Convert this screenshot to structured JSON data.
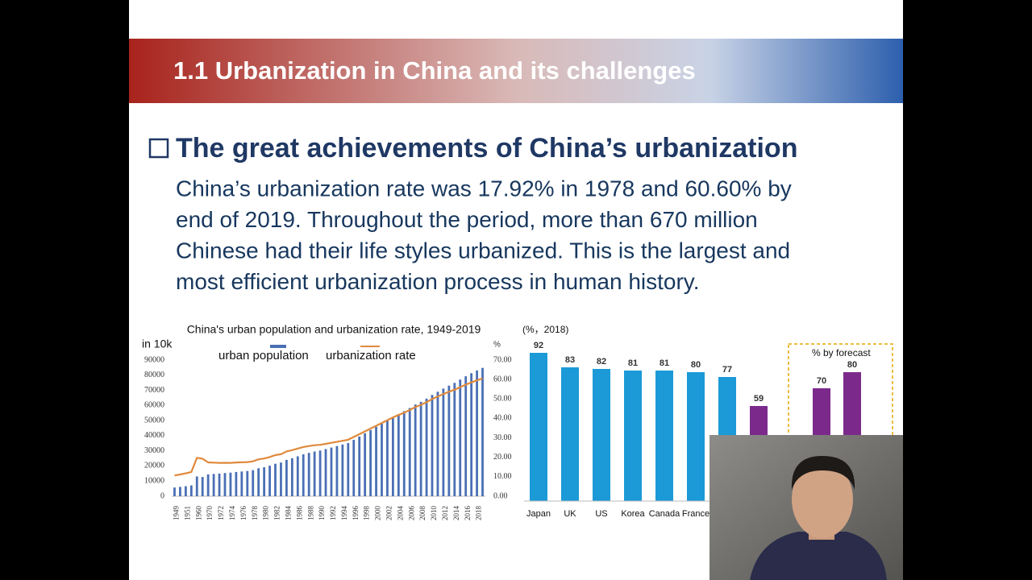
{
  "slide": {
    "title": "1.1  Urbanization in China and its challenges",
    "heading": "The great achievements of China’s urbanization",
    "body": [
      "China’s urbanization rate was 17.92% in 1978 and 60.60% by",
      "end of 2019. Throughout the period, more than 670 million",
      "Chinese had their life styles urbanized. This is the largest and",
      "most efficient urbanization process in human history."
    ]
  },
  "chart_data": [
    {
      "type": "bar-line",
      "title": "China's urban population and urbanization rate, 1949-2019",
      "y_label": "in 10k",
      "y2_label": "%",
      "categories": [
        "1949",
        null,
        "1951",
        null,
        "1960",
        null,
        "1970",
        null,
        "1972",
        null,
        "1974",
        null,
        "1976",
        null,
        "1978",
        null,
        "1980",
        null,
        "1982",
        null,
        "1984",
        null,
        "1986",
        null,
        "1988",
        null,
        "1990",
        null,
        "1992",
        null,
        "1994",
        null,
        "1996",
        null,
        "1998",
        null,
        "2000",
        null,
        "2002",
        null,
        "2004",
        null,
        "2006",
        null,
        "2008",
        null,
        "2010",
        null,
        "2012",
        null,
        "2014",
        null,
        "2016",
        null,
        "2018",
        null
      ],
      "series": [
        {
          "name": "urban population",
          "color": "#4a6fb5",
          "values": [
            5765,
            6169,
            6632,
            7163,
            13073,
            12707,
            14424,
            14711,
            14935,
            15345,
            15595,
            16030,
            16341,
            16669,
            17245,
            18495,
            19140,
            20171,
            21480,
            22274,
            24017,
            25094,
            26366,
            27674,
            28661,
            29540,
            30195,
            31203,
            32175,
            33173,
            34169,
            35174,
            37304,
            39449,
            41608,
            43748,
            45906,
            48064,
            50212,
            52376,
            54283,
            56212,
            58288,
            60633,
            62403,
            64512,
            66978,
            69079,
            71182,
            73111,
            74916,
            77116,
            79298,
            81347,
            83137,
            84843
          ]
        },
        {
          "name": "urbanization rate",
          "color": "#e08a3c",
          "axis": "y2",
          "values": [
            10.64,
            11.18,
            11.78,
            12.46,
            19.75,
            19.29,
            17.38,
            17.26,
            17.13,
            17.2,
            17.16,
            17.34,
            17.44,
            17.55,
            17.92,
            18.96,
            19.39,
            20.16,
            21.13,
            21.62,
            23.01,
            23.71,
            24.52,
            25.32,
            25.81,
            26.21,
            26.41,
            26.94,
            27.46,
            27.99,
            28.51,
            29.04,
            30.48,
            31.91,
            33.35,
            34.78,
            36.22,
            37.66,
            39.09,
            40.53,
            41.76,
            42.99,
            44.34,
            45.89,
            46.99,
            48.34,
            49.95,
            51.27,
            52.57,
            53.73,
            54.77,
            56.1,
            57.35,
            58.52,
            59.58,
            60.6
          ]
        }
      ],
      "ylim": [
        0,
        90000
      ],
      "yticks": [
        0,
        10000,
        20000,
        30000,
        40000,
        50000,
        60000,
        70000,
        80000,
        90000
      ],
      "y2lim": [
        0,
        70
      ],
      "y2ticks": [
        {
          "value": 0,
          "label": "0.00"
        },
        {
          "value": 10,
          "label": "10.00"
        },
        {
          "value": 20,
          "label": "20.00"
        },
        {
          "value": 30,
          "label": "30.00"
        },
        {
          "value": 40,
          "label": "40.00"
        },
        {
          "value": 50,
          "label": "50.00"
        },
        {
          "value": 60,
          "label": "60.00"
        },
        {
          "value": 70,
          "label": "70.00"
        }
      ]
    },
    {
      "type": "bar",
      "subtitle": "(%，2018)",
      "annotation": "% by forecast",
      "categories": [
        "Japan",
        "UK",
        "US",
        "Korea",
        "Canada",
        "France",
        null,
        null,
        null,
        null
      ],
      "values": [
        92,
        83,
        82,
        81,
        81,
        80,
        77,
        59,
        70,
        80
      ],
      "colors": [
        "#1b9ad7",
        "#1b9ad7",
        "#1b9ad7",
        "#1b9ad7",
        "#1b9ad7",
        "#1b9ad7",
        "#1b9ad7",
        "#7b2a8c",
        "#7b2a8c",
        "#7b2a8c"
      ]
    }
  ]
}
